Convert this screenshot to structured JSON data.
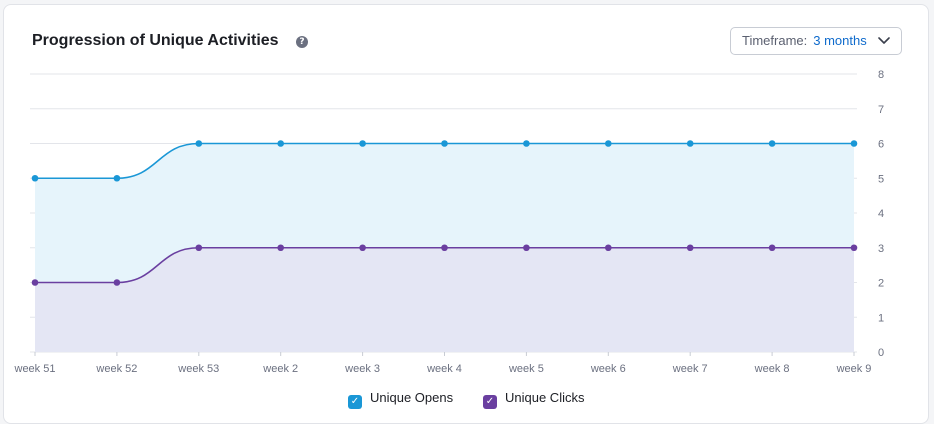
{
  "header": {
    "title": "Progression of Unique Activities",
    "help_icon": "?",
    "timeframe_label": "Timeframe:",
    "timeframe_value": "3 months"
  },
  "colors": {
    "opens": "#1a97d6",
    "opens_fill": "#e6f4fb",
    "clicks": "#6a3fa0",
    "clicks_fill": "#e4e6f4",
    "grid": "#e3e5ea",
    "tick_text": "#6b7080"
  },
  "chart_data": {
    "type": "area",
    "categories": [
      "week 51",
      "week 52",
      "week 53",
      "week 2",
      "week 3",
      "week 4",
      "week 5",
      "week 6",
      "week 7",
      "week 8",
      "week 9"
    ],
    "series": [
      {
        "name": "Unique Opens",
        "values": [
          5,
          5,
          6,
          6,
          6,
          6,
          6,
          6,
          6,
          6,
          6
        ]
      },
      {
        "name": "Unique Clicks",
        "values": [
          2,
          2,
          3,
          3,
          3,
          3,
          3,
          3,
          3,
          3,
          3
        ]
      }
    ],
    "ylim": [
      0,
      8
    ],
    "yticks": [
      0,
      1,
      2,
      3,
      4,
      5,
      6,
      7,
      8
    ],
    "grid": true,
    "legend": "bottom-center",
    "y_axis_side": "right"
  },
  "legend": [
    {
      "label": "Unique Opens",
      "checked": true,
      "check": "✓"
    },
    {
      "label": "Unique Clicks",
      "checked": true,
      "check": "✓"
    }
  ]
}
